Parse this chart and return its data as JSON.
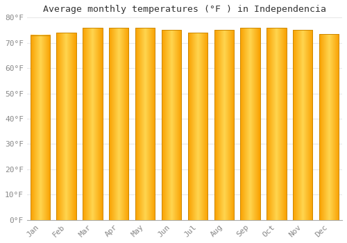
{
  "months": [
    "Jan",
    "Feb",
    "Mar",
    "Apr",
    "May",
    "Jun",
    "Jul",
    "Aug",
    "Sep",
    "Oct",
    "Nov",
    "Dec"
  ],
  "values": [
    73,
    74,
    76,
    76,
    76,
    75,
    74,
    75,
    76,
    76,
    75,
    73.5
  ],
  "title": "Average monthly temperatures (°F ) in Independencia",
  "ylim": [
    0,
    80
  ],
  "yticks": [
    0,
    10,
    20,
    30,
    40,
    50,
    60,
    70,
    80
  ],
  "ytick_labels": [
    "0°F",
    "10°F",
    "20°F",
    "30°F",
    "40°F",
    "50°F",
    "60°F",
    "70°F",
    "80°F"
  ],
  "background_color": "#FFFFFF",
  "grid_color": "#E8E8E8",
  "bar_color_center": "#FFD54F",
  "bar_color_edge": "#F9A000",
  "bar_outline_color": "#CC8800",
  "title_fontsize": 9.5,
  "tick_fontsize": 8,
  "tick_color": "#888888"
}
